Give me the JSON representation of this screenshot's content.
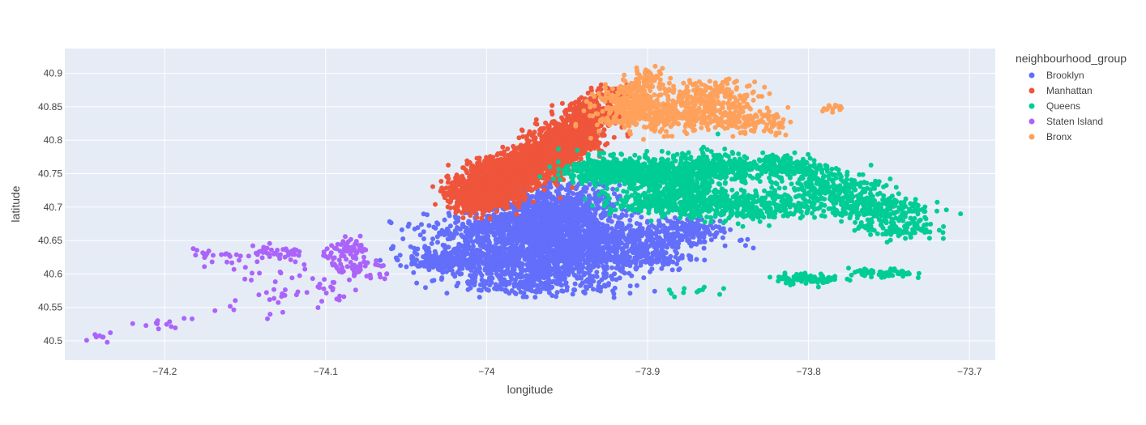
{
  "chart_data": {
    "type": "scatter",
    "xlabel": "longitude",
    "ylabel": "latitude",
    "xlim": [
      -74.262,
      -73.684
    ],
    "ylim": [
      40.471,
      40.937
    ],
    "x_ticks": [
      -74.2,
      -74.1,
      -74,
      -73.9,
      -73.8,
      -73.7
    ],
    "x_tick_labels": [
      "−74.2",
      "−74.1",
      "−74",
      "−73.9",
      "−73.8",
      "−73.7"
    ],
    "y_ticks": [
      40.5,
      40.55,
      40.6,
      40.65,
      40.7,
      40.75,
      40.8,
      40.85,
      40.9
    ],
    "y_tick_labels": [
      "40.5",
      "40.55",
      "40.6",
      "40.65",
      "40.7",
      "40.75",
      "40.8",
      "40.85",
      "40.9"
    ],
    "grid": true,
    "legend": {
      "title": "neighbourhood_group",
      "placement": "right"
    },
    "series": [
      {
        "name": "Brooklyn",
        "color": "#636efa",
        "regions": [
          {
            "cx": -73.958,
            "cy": 40.69,
            "sx": 0.02,
            "sy": 0.022,
            "n": 900
          },
          {
            "cx": -73.985,
            "cy": 40.665,
            "sx": 0.025,
            "sy": 0.015,
            "n": 500
          },
          {
            "cx": -73.945,
            "cy": 40.645,
            "sx": 0.02,
            "sy": 0.018,
            "n": 600
          },
          {
            "cx": -73.965,
            "cy": 40.615,
            "sx": 0.03,
            "sy": 0.018,
            "n": 500
          },
          {
            "cx": -74.01,
            "cy": 40.625,
            "sx": 0.02,
            "sy": 0.012,
            "n": 300
          },
          {
            "cx": -74.03,
            "cy": 40.618,
            "sx": 0.006,
            "sy": 0.005,
            "n": 80
          },
          {
            "cx": -73.97,
            "cy": 40.585,
            "sx": 0.025,
            "sy": 0.008,
            "n": 200
          },
          {
            "cx": -73.895,
            "cy": 40.655,
            "sx": 0.02,
            "sy": 0.012,
            "n": 250
          },
          {
            "cx": -73.905,
            "cy": 40.625,
            "sx": 0.018,
            "sy": 0.01,
            "n": 150
          },
          {
            "cx": -73.87,
            "cy": 40.668,
            "sx": 0.01,
            "sy": 0.008,
            "n": 80
          }
        ]
      },
      {
        "name": "Manhattan",
        "color": "#ef553b",
        "regions": [
          {
            "cx": -74.004,
            "cy": 40.72,
            "sx": 0.01,
            "sy": 0.012,
            "n": 900
          },
          {
            "cx": -73.985,
            "cy": 40.75,
            "sx": 0.012,
            "sy": 0.012,
            "n": 900
          },
          {
            "cx": -73.965,
            "cy": 40.775,
            "sx": 0.01,
            "sy": 0.01,
            "n": 700
          },
          {
            "cx": -73.948,
            "cy": 40.805,
            "sx": 0.01,
            "sy": 0.012,
            "n": 600
          },
          {
            "cx": -73.935,
            "cy": 40.84,
            "sx": 0.008,
            "sy": 0.01,
            "n": 250
          },
          {
            "cx": -73.92,
            "cy": 40.868,
            "sx": 0.008,
            "sy": 0.006,
            "n": 60
          }
        ]
      },
      {
        "name": "Queens",
        "color": "#00cc96",
        "regions": [
          {
            "cx": -73.92,
            "cy": 40.755,
            "sx": 0.015,
            "sy": 0.01,
            "n": 500
          },
          {
            "cx": -73.885,
            "cy": 40.745,
            "sx": 0.015,
            "sy": 0.015,
            "n": 400
          },
          {
            "cx": -73.88,
            "cy": 40.71,
            "sx": 0.02,
            "sy": 0.012,
            "n": 400
          },
          {
            "cx": -73.835,
            "cy": 40.7,
            "sx": 0.02,
            "sy": 0.012,
            "n": 300
          },
          {
            "cx": -73.815,
            "cy": 40.76,
            "sx": 0.015,
            "sy": 0.01,
            "n": 250
          },
          {
            "cx": -73.785,
            "cy": 40.73,
            "sx": 0.015,
            "sy": 0.012,
            "n": 200
          },
          {
            "cx": -73.765,
            "cy": 40.7,
            "sx": 0.018,
            "sy": 0.01,
            "n": 250
          },
          {
            "cx": -73.745,
            "cy": 40.67,
            "sx": 0.012,
            "sy": 0.01,
            "n": 120
          },
          {
            "cx": -73.86,
            "cy": 40.76,
            "sx": 0.012,
            "sy": 0.012,
            "n": 200
          },
          {
            "cx": -73.8,
            "cy": 40.593,
            "sx": 0.01,
            "sy": 0.004,
            "n": 80
          },
          {
            "cx": -73.755,
            "cy": 40.6,
            "sx": 0.01,
            "sy": 0.004,
            "n": 60
          },
          {
            "cx": -73.87,
            "cy": 40.575,
            "sx": 0.01,
            "sy": 0.004,
            "n": 12
          }
        ]
      },
      {
        "name": "Staten Island",
        "color": "#ab63fa",
        "regions": [
          {
            "cx": -74.085,
            "cy": 40.635,
            "sx": 0.008,
            "sy": 0.008,
            "n": 60
          },
          {
            "cx": -74.078,
            "cy": 40.605,
            "sx": 0.01,
            "sy": 0.01,
            "n": 50
          },
          {
            "cx": -74.13,
            "cy": 40.63,
            "sx": 0.012,
            "sy": 0.006,
            "n": 40
          },
          {
            "cx": -74.165,
            "cy": 40.625,
            "sx": 0.01,
            "sy": 0.01,
            "n": 25
          },
          {
            "cx": -74.14,
            "cy": 40.575,
            "sx": 0.02,
            "sy": 0.02,
            "n": 30
          },
          {
            "cx": -74.1,
            "cy": 40.58,
            "sx": 0.01,
            "sy": 0.012,
            "n": 20
          },
          {
            "cx": -74.2,
            "cy": 40.535,
            "sx": 0.015,
            "sy": 0.012,
            "n": 12
          },
          {
            "cx": -74.24,
            "cy": 40.507,
            "sx": 0.006,
            "sy": 0.004,
            "n": 8
          }
        ]
      },
      {
        "name": "Bronx",
        "color": "#ffa15a",
        "regions": [
          {
            "cx": -73.91,
            "cy": 40.86,
            "sx": 0.01,
            "sy": 0.012,
            "n": 250
          },
          {
            "cx": -73.895,
            "cy": 40.835,
            "sx": 0.018,
            "sy": 0.012,
            "n": 300
          },
          {
            "cx": -73.86,
            "cy": 40.865,
            "sx": 0.015,
            "sy": 0.012,
            "n": 200
          },
          {
            "cx": -73.85,
            "cy": 40.835,
            "sx": 0.015,
            "sy": 0.01,
            "n": 150
          },
          {
            "cx": -73.9,
            "cy": 40.895,
            "sx": 0.006,
            "sy": 0.008,
            "n": 40
          },
          {
            "cx": -73.83,
            "cy": 40.825,
            "sx": 0.01,
            "sy": 0.008,
            "n": 40
          },
          {
            "cx": -73.785,
            "cy": 40.848,
            "sx": 0.003,
            "sy": 0.004,
            "n": 15
          }
        ]
      }
    ]
  }
}
